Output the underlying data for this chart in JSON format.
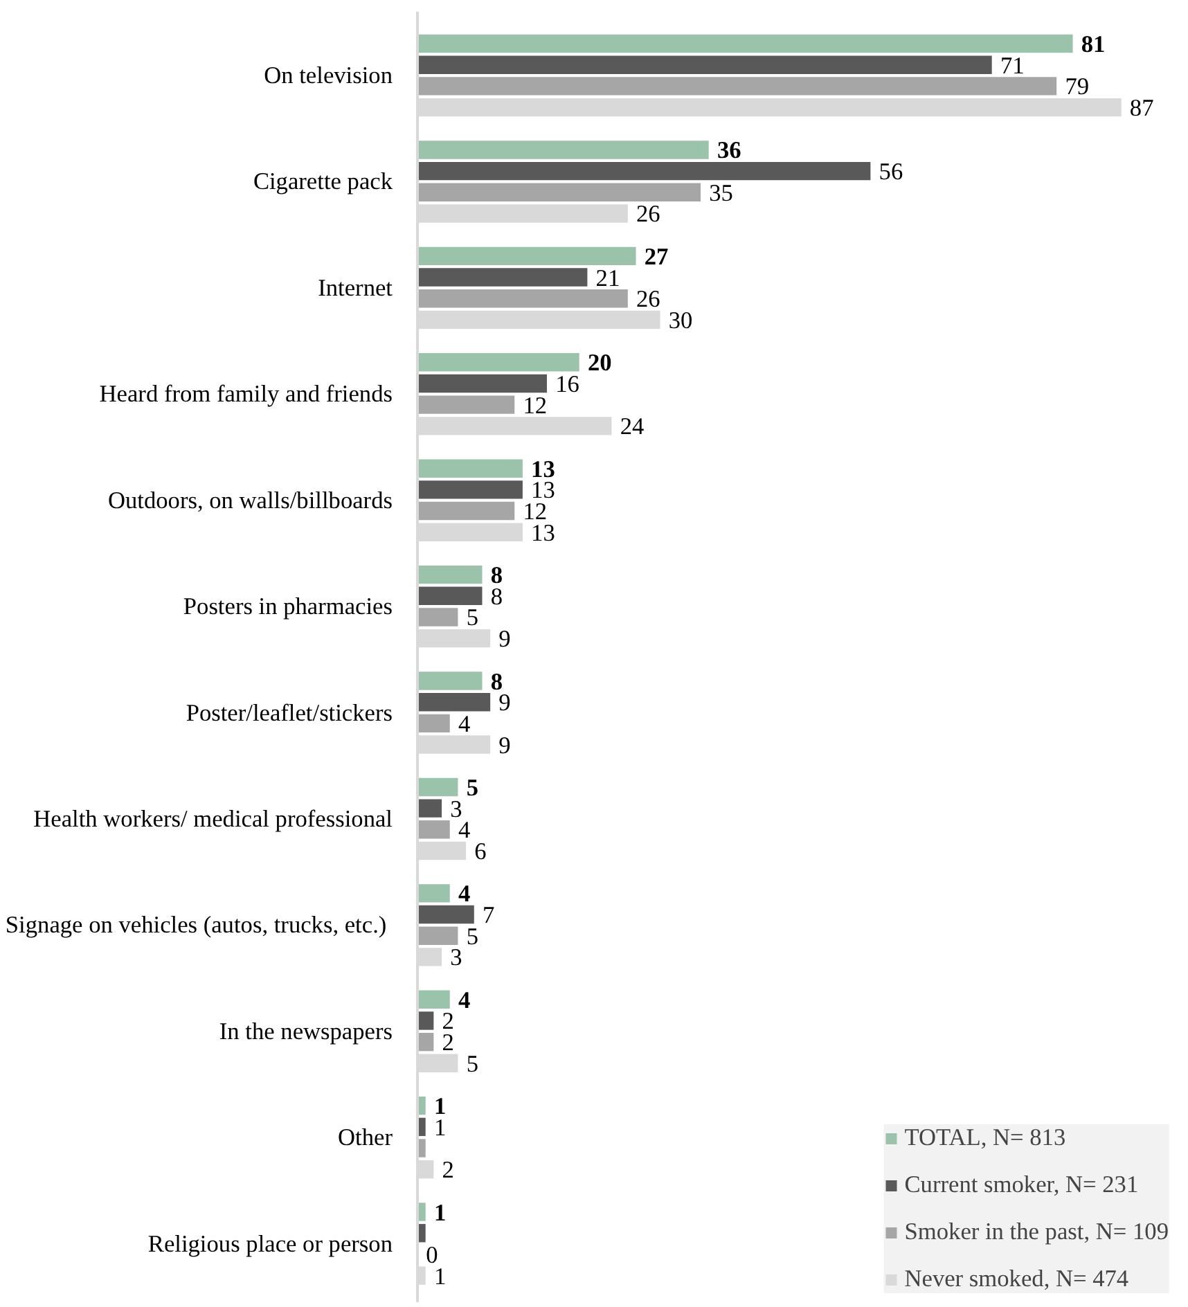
{
  "chart_data": {
    "type": "bar",
    "orientation": "horizontal",
    "categories": [
      "On television",
      "Cigarette pack",
      "Internet",
      "Heard from family and friends",
      "Outdoors, on walls/billboards",
      "Posters in pharmacies",
      "Poster/leaflet/stickers",
      "Health workers/ medical professional",
      "Signage on vehicles  (autos, trucks, etc.)",
      "In the newspapers",
      "Other",
      "Religious place or person"
    ],
    "series": [
      {
        "name": "TOTAL, N= 813",
        "color": "#9bc2ab",
        "values": [
          81,
          36,
          27,
          20,
          13,
          8,
          8,
          5,
          4,
          4,
          1,
          1
        ],
        "value_labels": [
          "81",
          "36",
          "27",
          "20",
          "13",
          "8",
          "8",
          "5",
          "4",
          "4",
          "1",
          "1"
        ]
      },
      {
        "name": "Current smoker, N= 231",
        "color": "#595959",
        "values": [
          71,
          56,
          21,
          16,
          13,
          8,
          9,
          3,
          7,
          2,
          1,
          1
        ],
        "value_labels": [
          "71",
          "56",
          "21",
          "16",
          "13",
          "8",
          "9",
          "3",
          "7",
          "2",
          "1",
          null
        ]
      },
      {
        "name": "Smoker in the past, N= 109",
        "color": "#a6a6a6",
        "values": [
          79,
          35,
          26,
          12,
          12,
          5,
          4,
          4,
          5,
          2,
          1,
          0
        ],
        "value_labels": [
          "79",
          "35",
          "26",
          "12",
          "12",
          "5",
          "4",
          "4",
          "5",
          "2",
          null,
          "0"
        ]
      },
      {
        "name": "Never smoked, N= 474",
        "color": "#d9d9d9",
        "values": [
          87,
          26,
          30,
          24,
          13,
          9,
          9,
          6,
          3,
          5,
          2,
          1
        ],
        "value_labels": [
          "87",
          "26",
          "30",
          "24",
          "13",
          "9",
          "9",
          "6",
          "3",
          "5",
          "2",
          "1"
        ]
      }
    ],
    "legend": "bottom right",
    "grid": false
  }
}
